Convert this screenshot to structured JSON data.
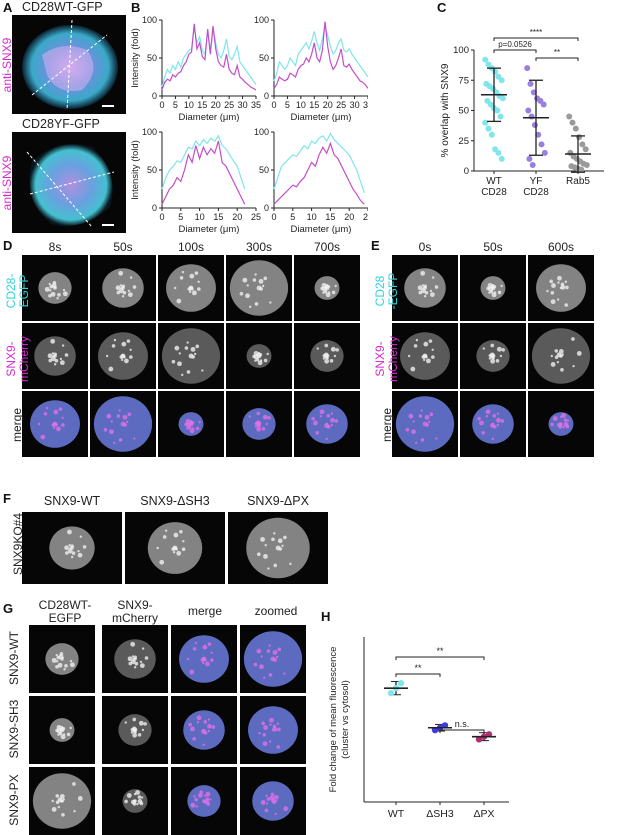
{
  "panels": {
    "A": {
      "letter": "A",
      "top_label": "CD28WT-GFP",
      "side_label_1": "anti-SNX9",
      "bottom_label": "CD28YF-GFP",
      "side_label_2": "anti-SNX9"
    },
    "B": {
      "letter": "B",
      "ylabel": "Intensity (fold)",
      "xlabel": "Diameter (μm)"
    },
    "C": {
      "letter": "C",
      "ylabel": "% overlap with SNX9",
      "sig_top": "****",
      "sig_p": "p=0.0526",
      "sig_right": "**"
    },
    "D": {
      "letter": "D",
      "times": [
        "8s",
        "50s",
        "100s",
        "300s",
        "700s"
      ],
      "rows": [
        "CD28-\nEGFP",
        "SNX9-\nmCherry",
        "merge"
      ],
      "row1a": "CD28-",
      "row1b": "EGFP",
      "row2a": "SNX9-",
      "row2b": "mCherry",
      "row3": "merge"
    },
    "E": {
      "letter": "E",
      "times": [
        "0s",
        "50s",
        "600s"
      ],
      "row1a": "CD28",
      "row1b": "-EGFP",
      "row2a": "SNX9-",
      "row2b": "mCherry",
      "row3": "merge"
    },
    "F": {
      "letter": "F",
      "cols": [
        "SNX9-WT",
        "SNX9-ΔSH3",
        "SNX9-ΔPX"
      ],
      "side": "SNX9KO#4"
    },
    "G": {
      "letter": "G",
      "col1a": "CD28WT-",
      "col1b": "EGFP",
      "col2a": "SNX9-",
      "col2b": "mCherry",
      "col3": "merge",
      "col4": "zoomed",
      "rows": [
        "SNX9-WT",
        "SNX9-SH3",
        "SNX9-PX"
      ]
    },
    "H": {
      "letter": "H",
      "ylabel_a": "Fold change of mean fluorescence",
      "ylabel_b": "(cluster vs cytosol)",
      "sig1": "**",
      "sig2": "**",
      "sig3": "n.s."
    }
  },
  "chart_data": [
    {
      "type": "line",
      "panel": "B-top-left",
      "xlabel": "Diameter (μm)",
      "ylabel": "Intensity (fold)",
      "xlim": [
        0,
        35
      ],
      "ylim": [
        0,
        100
      ],
      "xticks": [
        0,
        5,
        10,
        15,
        20,
        25,
        30,
        35
      ],
      "yticks": [
        0,
        50,
        100
      ],
      "x": [
        0,
        1,
        2,
        3,
        4,
        5,
        6,
        7,
        8,
        9,
        10,
        11,
        12,
        13,
        14,
        15,
        16,
        17,
        18,
        19,
        20,
        21,
        22,
        23,
        24,
        25,
        26,
        27,
        28,
        29,
        30,
        31,
        32,
        33,
        34,
        35
      ],
      "series": [
        {
          "color": "#7fe6ea",
          "values": [
            12,
            25,
            35,
            30,
            40,
            35,
            45,
            38,
            50,
            55,
            60,
            62,
            90,
            70,
            78,
            60,
            55,
            85,
            60,
            88,
            70,
            55,
            50,
            60,
            75,
            52,
            48,
            55,
            65,
            45,
            40,
            35,
            30,
            25,
            20,
            15
          ]
        },
        {
          "color": "#c44ec8",
          "values": [
            8,
            18,
            22,
            20,
            28,
            25,
            30,
            32,
            40,
            45,
            55,
            58,
            95,
            62,
            70,
            52,
            48,
            88,
            55,
            92,
            62,
            45,
            40,
            38,
            55,
            35,
            30,
            28,
            40,
            25,
            22,
            18,
            15,
            12,
            10,
            8
          ]
        }
      ]
    },
    {
      "type": "line",
      "panel": "B-top-right",
      "xlabel": "Diameter (μm)",
      "ylabel": "",
      "xlim": [
        0,
        35
      ],
      "ylim": [
        0,
        100
      ],
      "xticks": [
        0,
        5,
        10,
        15,
        20,
        25,
        30,
        35
      ],
      "yticks": [
        0,
        50,
        100
      ],
      "x": [
        0,
        1,
        2,
        3,
        4,
        5,
        6,
        7,
        8,
        9,
        10,
        11,
        12,
        13,
        14,
        15,
        16,
        17,
        18,
        19,
        20,
        21,
        22,
        23,
        24,
        25,
        26,
        27,
        28,
        29,
        30,
        31,
        32,
        33,
        34,
        35
      ],
      "series": [
        {
          "color": "#7fe6ea",
          "values": [
            20,
            30,
            45,
            40,
            35,
            40,
            50,
            45,
            40,
            55,
            60,
            65,
            70,
            62,
            72,
            85,
            70,
            60,
            75,
            92,
            80,
            65,
            55,
            60,
            70,
            75,
            60,
            58,
            62,
            55,
            50,
            45,
            40,
            35,
            30,
            25
          ]
        },
        {
          "color": "#c44ec8",
          "values": [
            10,
            15,
            25,
            22,
            20,
            22,
            30,
            28,
            25,
            35,
            40,
            42,
            50,
            45,
            55,
            70,
            50,
            45,
            60,
            98,
            65,
            45,
            35,
            40,
            50,
            62,
            40,
            38,
            42,
            35,
            30,
            25,
            20,
            18,
            15,
            10
          ]
        }
      ]
    },
    {
      "type": "line",
      "panel": "B-bottom-left",
      "xlabel": "Diameter (μm)",
      "ylabel": "Intensity (fold)",
      "xlim": [
        0,
        25
      ],
      "ylim": [
        0,
        100
      ],
      "xticks": [
        0,
        5,
        10,
        15,
        20,
        25
      ],
      "yticks": [
        0,
        50,
        100
      ],
      "x": [
        0,
        1,
        2,
        3,
        4,
        5,
        6,
        7,
        8,
        9,
        10,
        11,
        12,
        13,
        14,
        15,
        16,
        17,
        18,
        19,
        20,
        21,
        22
      ],
      "series": [
        {
          "color": "#7fe6ea",
          "values": [
            25,
            40,
            50,
            55,
            62,
            60,
            70,
            80,
            78,
            88,
            82,
            90,
            85,
            92,
            88,
            95,
            82,
            78,
            70,
            62,
            55,
            40,
            25
          ]
        },
        {
          "color": "#c44ec8",
          "values": [
            5,
            15,
            25,
            30,
            40,
            35,
            50,
            70,
            60,
            82,
            65,
            80,
            70,
            78,
            72,
            88,
            60,
            55,
            45,
            35,
            25,
            15,
            5
          ]
        }
      ]
    },
    {
      "type": "line",
      "panel": "B-bottom-right",
      "xlabel": "Diameter (μm)",
      "ylabel": "",
      "xlim": [
        0,
        25
      ],
      "ylim": [
        0,
        100
      ],
      "xticks": [
        0,
        5,
        10,
        15,
        20,
        25
      ],
      "yticks": [
        0,
        50,
        100
      ],
      "x": [
        0,
        1,
        2,
        3,
        4,
        5,
        6,
        7,
        8,
        9,
        10,
        11,
        12,
        13,
        14,
        15,
        16,
        17,
        18,
        19,
        20,
        21,
        22,
        23,
        24
      ],
      "series": [
        {
          "color": "#7fe6ea",
          "values": [
            25,
            40,
            55,
            60,
            65,
            70,
            68,
            75,
            82,
            78,
            88,
            85,
            92,
            95,
            88,
            98,
            90,
            85,
            80,
            75,
            70,
            60,
            50,
            35,
            20
          ]
        },
        {
          "color": "#c44ec8",
          "values": [
            5,
            10,
            15,
            20,
            25,
            30,
            28,
            35,
            40,
            50,
            60,
            55,
            70,
            80,
            72,
            85,
            70,
            65,
            55,
            45,
            35,
            25,
            18,
            10,
            5
          ]
        }
      ]
    },
    {
      "type": "scatter",
      "panel": "C",
      "ylabel": "% overlap with SNX9",
      "ylim": [
        0,
        100
      ],
      "yticks": [
        0,
        25,
        50,
        75,
        100
      ],
      "categories": [
        "WT\nCD28",
        "YF\nCD28",
        "Rab5"
      ],
      "category_lines": [
        [
          "WT",
          "CD28"
        ],
        [
          "YF",
          "CD28"
        ],
        [
          "Rab5"
        ]
      ],
      "means": [
        63,
        44,
        14
      ],
      "sd": [
        22,
        31,
        15
      ],
      "colors": [
        "#7fe6ea",
        "#9a7fe0",
        "#9a9a9a"
      ],
      "points": [
        [
          92,
          88,
          85,
          82,
          78,
          75,
          72,
          70,
          68,
          65,
          62,
          60,
          58,
          55,
          52,
          50,
          45,
          40,
          35,
          30,
          18,
          15,
          10
        ],
        [
          85,
          72,
          65,
          60,
          58,
          55,
          50,
          45,
          38,
          30,
          22,
          15,
          10,
          5
        ],
        [
          45,
          40,
          35,
          28,
          22,
          18,
          15,
          12,
          10,
          8,
          6,
          5,
          4,
          3,
          2,
          1
        ]
      ]
    },
    {
      "type": "scatter",
      "panel": "H",
      "ylabel": "Fold change of mean fluorescence (cluster vs cytosol)",
      "categories": [
        "WT",
        "ΔSH3",
        "ΔPX"
      ],
      "ylim": [
        0,
        5
      ],
      "means": [
        3.45,
        2.25,
        1.98
      ],
      "sd": [
        0.2,
        0.1,
        0.12
      ],
      "colors": [
        "#7fe6ea",
        "#3b3be0",
        "#b03070"
      ],
      "points": [
        [
          3.3,
          3.45,
          3.6
        ],
        [
          2.18,
          2.25,
          2.32
        ],
        [
          1.9,
          1.98,
          2.05
        ]
      ]
    }
  ]
}
